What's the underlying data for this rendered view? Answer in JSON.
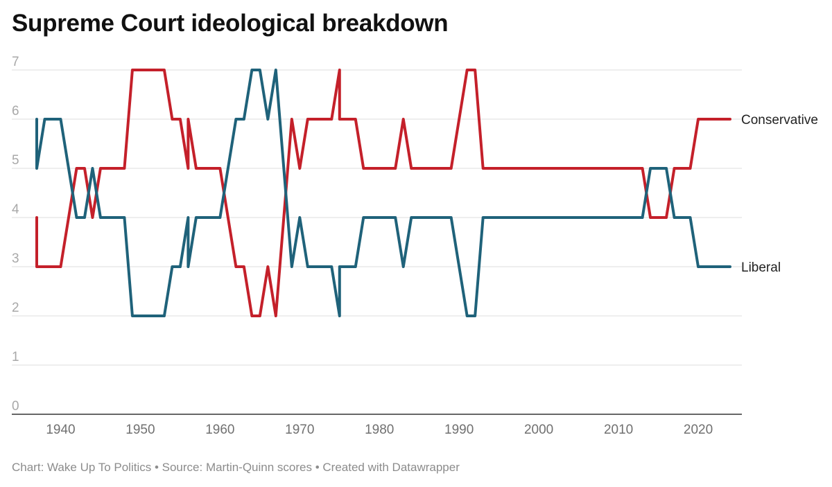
{
  "chart_data": {
    "type": "line",
    "title": "Supreme Court ideological breakdown",
    "footer": "Chart: Wake Up To Politics • Source: Martin-Quinn scores • Created with Datawrapper",
    "xlim": [
      1937,
      2024
    ],
    "ylim": [
      0,
      7
    ],
    "x_ticks": [
      1940,
      1950,
      1960,
      1970,
      1980,
      1990,
      2000,
      2010,
      2020
    ],
    "y_ticks": [
      0,
      1,
      2,
      3,
      4,
      5,
      6,
      7
    ],
    "grid": true,
    "legend": "line-end labels on right",
    "series": [
      {
        "name": "Conservative",
        "color": "#c4202a",
        "points": [
          [
            1937,
            4
          ],
          [
            1937,
            3
          ],
          [
            1938,
            3
          ],
          [
            1940,
            3
          ],
          [
            1942,
            5
          ],
          [
            1943,
            5
          ],
          [
            1944,
            4
          ],
          [
            1945,
            5
          ],
          [
            1948,
            5
          ],
          [
            1949,
            7
          ],
          [
            1953,
            7
          ],
          [
            1954,
            6
          ],
          [
            1955,
            6
          ],
          [
            1956,
            5
          ],
          [
            1956,
            6
          ],
          [
            1957,
            5
          ],
          [
            1960,
            5
          ],
          [
            1962,
            3
          ],
          [
            1963,
            3
          ],
          [
            1964,
            2
          ],
          [
            1965,
            2
          ],
          [
            1966,
            3
          ],
          [
            1967,
            2
          ],
          [
            1969,
            6
          ],
          [
            1970,
            5
          ],
          [
            1971,
            6
          ],
          [
            1974,
            6
          ],
          [
            1975,
            7
          ],
          [
            1975,
            6
          ],
          [
            1977,
            6
          ],
          [
            1978,
            5
          ],
          [
            1982,
            5
          ],
          [
            1983,
            6
          ],
          [
            1984,
            5
          ],
          [
            1989,
            5
          ],
          [
            1991,
            7
          ],
          [
            1992,
            7
          ],
          [
            1993,
            5
          ],
          [
            2013,
            5
          ],
          [
            2014,
            4
          ],
          [
            2016,
            4
          ],
          [
            2017,
            5
          ],
          [
            2019,
            5
          ],
          [
            2020,
            6
          ],
          [
            2024,
            6
          ]
        ]
      },
      {
        "name": "Liberal",
        "color": "#1f627a",
        "points": [
          [
            1937,
            6
          ],
          [
            1937,
            5
          ],
          [
            1938,
            6
          ],
          [
            1940,
            6
          ],
          [
            1942,
            4
          ],
          [
            1943,
            4
          ],
          [
            1944,
            5
          ],
          [
            1945,
            4
          ],
          [
            1948,
            4
          ],
          [
            1949,
            2
          ],
          [
            1953,
            2
          ],
          [
            1954,
            3
          ],
          [
            1955,
            3
          ],
          [
            1956,
            4
          ],
          [
            1956,
            3
          ],
          [
            1957,
            4
          ],
          [
            1960,
            4
          ],
          [
            1962,
            6
          ],
          [
            1963,
            6
          ],
          [
            1964,
            7
          ],
          [
            1965,
            7
          ],
          [
            1966,
            6
          ],
          [
            1967,
            7
          ],
          [
            1969,
            3
          ],
          [
            1970,
            4
          ],
          [
            1971,
            3
          ],
          [
            1974,
            3
          ],
          [
            1975,
            2
          ],
          [
            1975,
            3
          ],
          [
            1977,
            3
          ],
          [
            1978,
            4
          ],
          [
            1982,
            4
          ],
          [
            1983,
            3
          ],
          [
            1984,
            4
          ],
          [
            1989,
            4
          ],
          [
            1991,
            2
          ],
          [
            1992,
            2
          ],
          [
            1993,
            4
          ],
          [
            2013,
            4
          ],
          [
            2014,
            5
          ],
          [
            2016,
            5
          ],
          [
            2017,
            4
          ],
          [
            2019,
            4
          ],
          [
            2020,
            3
          ],
          [
            2024,
            3
          ]
        ]
      }
    ]
  }
}
